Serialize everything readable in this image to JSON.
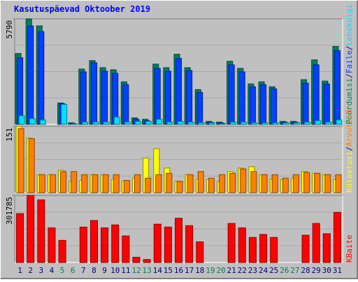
{
  "legend_separator": "/",
  "chart_data": [
    {
      "type": "bar",
      "title": "Kasutuspäevad Oktoober 2019",
      "ylim": [
        0,
        5790
      ],
      "yticks": [
        5790
      ],
      "series": [
        {
          "name": "Pöördumisi",
          "color": "#00805c",
          "values": [
            3886,
            5790,
            5402,
            0,
            1166,
            78,
            3031,
            3497,
            3108,
            2992,
            2331,
            350,
            272,
            3303,
            3108,
            3847,
            3108,
            1904,
            155,
            117,
            3458,
            3069,
            2215,
            2331,
            2059,
            155,
            155,
            2448,
            3536,
            2370,
            4275
          ]
        },
        {
          "name": "Faile",
          "color": "#0040ff",
          "values": [
            3653,
            5402,
            5091,
            0,
            1127,
            39,
            2875,
            3380,
            2914,
            2797,
            2176,
            272,
            194,
            3069,
            2914,
            3614,
            2953,
            1749,
            117,
            78,
            3264,
            2875,
            2059,
            2176,
            1943,
            117,
            117,
            2254,
            3264,
            2215,
            4041
          ]
        },
        {
          "name": "Lehekülgi",
          "color": "#00e0ff",
          "values": [
            466,
            311,
            233,
            0,
            1088,
            20,
            117,
            117,
            117,
            389,
            117,
            155,
            155,
            272,
            117,
            155,
            117,
            78,
            78,
            39,
            117,
            117,
            78,
            78,
            78,
            78,
            78,
            117,
            194,
            117,
            233
          ]
        }
      ]
    },
    {
      "type": "bar",
      "ylim": [
        0,
        151
      ],
      "yticks": [
        151
      ],
      "series": [
        {
          "name": "Külastusi",
          "color": "#ffff00",
          "values": [
            151,
            124,
            41,
            41,
            51,
            26,
            28,
            41,
            41,
            30,
            26,
            33,
            79,
            100,
            56,
            26,
            41,
            31,
            30,
            26,
            48,
            56,
            59,
            41,
            31,
            30,
            33,
            48,
            44,
            41,
            30
          ]
        },
        {
          "name": "Arvuteid",
          "color": "#ff8000",
          "values": [
            146,
            123,
            41,
            41,
            48,
            48,
            41,
            41,
            41,
            41,
            28,
            41,
            33,
            41,
            44,
            26,
            41,
            48,
            33,
            41,
            44,
            54,
            48,
            41,
            41,
            33,
            41,
            46,
            44,
            41,
            41
          ]
        }
      ]
    },
    {
      "type": "bar",
      "ylim": [
        0,
        301785
      ],
      "yticks": [
        301785
      ],
      "categories": [
        "1",
        "2",
        "3",
        "4",
        "5",
        "6",
        "7",
        "8",
        "9",
        "10",
        "11",
        "12",
        "13",
        "14",
        "15",
        "16",
        "17",
        "18",
        "19",
        "20",
        "21",
        "22",
        "23",
        "24",
        "25",
        "26",
        "27",
        "28",
        "29",
        "30",
        "31"
      ],
      "category_colors": [
        "#000080",
        "#000080",
        "#000080",
        "#000080",
        "#00805c",
        "#00805c",
        "#000080",
        "#000080",
        "#000080",
        "#000080",
        "#000080",
        "#00805c",
        "#00805c",
        "#000080",
        "#000080",
        "#000080",
        "#000080",
        "#000080",
        "#00805c",
        "#00805c",
        "#000080",
        "#000080",
        "#000080",
        "#000080",
        "#000080",
        "#00805c",
        "#00805c",
        "#000080",
        "#000080",
        "#000080",
        "#000080"
      ],
      "series": [
        {
          "name": "KBaite",
          "color": "#ff0000",
          "values": [
            220000,
            301785,
            281900,
            155900,
            99500,
            0,
            159200,
            189000,
            155900,
            169100,
            119400,
            23200,
            13300,
            172400,
            159200,
            199000,
            165800,
            92800,
            0,
            0,
            175700,
            155900,
            112700,
            126000,
            112700,
            0,
            0,
            122700,
            175700,
            129300,
            225500
          ]
        }
      ]
    }
  ]
}
